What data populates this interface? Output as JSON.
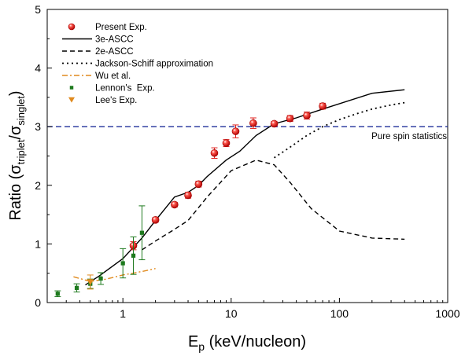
{
  "chart_data": {
    "type": "scatter",
    "xscale": "log",
    "xlim": [
      0.2,
      1000
    ],
    "ylim": [
      0,
      5
    ],
    "xticks": [
      1,
      10,
      100,
      1000
    ],
    "xtick_labels": [
      "1",
      "10",
      "100",
      "1000"
    ],
    "yticks": [
      0,
      1,
      2,
      3,
      4,
      5
    ],
    "ytick_labels": [
      "0",
      "1",
      "2",
      "3",
      "4",
      "5"
    ],
    "xlabel": {
      "main": "E",
      "sub": "p",
      "rest": " (keV/nucleon)"
    },
    "ylabel": {
      "pre": "Ratio (σ",
      "sub1": "triplet",
      "mid": "/σ",
      "sub2": "singlet",
      "post": ")"
    },
    "legend_position": "top-left",
    "reference_line": {
      "y": 3.0,
      "label": "Pure spin statistics",
      "color": "#1f2f9a"
    },
    "series": [
      {
        "name": "Present Exp.",
        "kind": "points",
        "marker": "sphere",
        "color": "#e0201e",
        "points": [
          {
            "x": 1.25,
            "y": 0.97,
            "err": 0.07
          },
          {
            "x": 2.0,
            "y": 1.41,
            "err": 0.04
          },
          {
            "x": 3.0,
            "y": 1.67,
            "err": 0.04
          },
          {
            "x": 4.0,
            "y": 1.83,
            "err": 0.05
          },
          {
            "x": 5.0,
            "y": 2.02,
            "err": 0.05
          },
          {
            "x": 7.0,
            "y": 2.55,
            "err": 0.09
          },
          {
            "x": 9.0,
            "y": 2.72,
            "err": 0.06
          },
          {
            "x": 11.0,
            "y": 2.92,
            "err": 0.11
          },
          {
            "x": 16.0,
            "y": 3.06,
            "err": 0.09
          },
          {
            "x": 25.0,
            "y": 3.05,
            "err": 0.04
          },
          {
            "x": 35.0,
            "y": 3.14,
            "err": 0.05
          },
          {
            "x": 50.0,
            "y": 3.19,
            "err": 0.06
          },
          {
            "x": 70.0,
            "y": 3.35,
            "err": 0.05
          }
        ]
      },
      {
        "name": "3e-ASCC",
        "kind": "line",
        "style": "solid",
        "color": "#000000",
        "x": [
          0.45,
          0.6,
          1.0,
          1.5,
          2.0,
          3.0,
          4.0,
          5.0,
          6.0,
          9.0,
          12.0,
          17.0,
          25.0,
          40.0,
          70.0,
          200.0,
          400.0
        ],
        "y": [
          0.3,
          0.45,
          0.75,
          1.1,
          1.4,
          1.8,
          1.88,
          2.0,
          2.15,
          2.43,
          2.58,
          2.85,
          3.05,
          3.15,
          3.3,
          3.57,
          3.63
        ]
      },
      {
        "name": "2e-ASCC",
        "kind": "line",
        "style": "dashed",
        "color": "#000000",
        "x": [
          1.5,
          2.0,
          3.0,
          4.0,
          6.0,
          10.0,
          17.0,
          25.0,
          35.0,
          55.0,
          100.0,
          200.0,
          400.0
        ],
        "y": [
          0.9,
          1.05,
          1.25,
          1.4,
          1.8,
          2.25,
          2.43,
          2.35,
          2.05,
          1.6,
          1.22,
          1.1,
          1.08
        ]
      },
      {
        "name": "Jackson-Schiff approximation",
        "kind": "line",
        "style": "dotted",
        "color": "#000000",
        "x": [
          25.0,
          35.0,
          50.0,
          70.0,
          100.0,
          150.0,
          200.0,
          300.0,
          400.0
        ],
        "y": [
          2.47,
          2.65,
          2.85,
          3.0,
          3.12,
          3.23,
          3.3,
          3.37,
          3.41
        ]
      },
      {
        "name": "Wu et al.",
        "kind": "line",
        "style": "dashdot",
        "color": "#e08a1e",
        "x": [
          0.35,
          0.5,
          0.7,
          1.0,
          1.5,
          2.0
        ],
        "y": [
          0.44,
          0.36,
          0.4,
          0.47,
          0.53,
          0.58
        ]
      },
      {
        "name": "Lennon's  Exp.",
        "kind": "points",
        "marker": "square",
        "color": "#1e7a1e",
        "points": [
          {
            "x": 0.25,
            "y": 0.15,
            "err": 0.05
          },
          {
            "x": 0.375,
            "y": 0.25,
            "err": 0.07
          },
          {
            "x": 0.5,
            "y": 0.32,
            "err": 0.08
          },
          {
            "x": 0.625,
            "y": 0.41,
            "err": 0.1
          },
          {
            "x": 1.0,
            "y": 0.67,
            "err": 0.25
          },
          {
            "x": 1.25,
            "y": 0.8,
            "err": 0.32
          },
          {
            "x": 1.5,
            "y": 1.19,
            "err": 0.46
          }
        ]
      },
      {
        "name": "Lee's Exp.",
        "kind": "points",
        "marker": "triangle-down",
        "color": "#e08a1e",
        "points": [
          {
            "x": 0.5,
            "y": 0.35,
            "err": 0.12
          }
        ]
      }
    ]
  }
}
